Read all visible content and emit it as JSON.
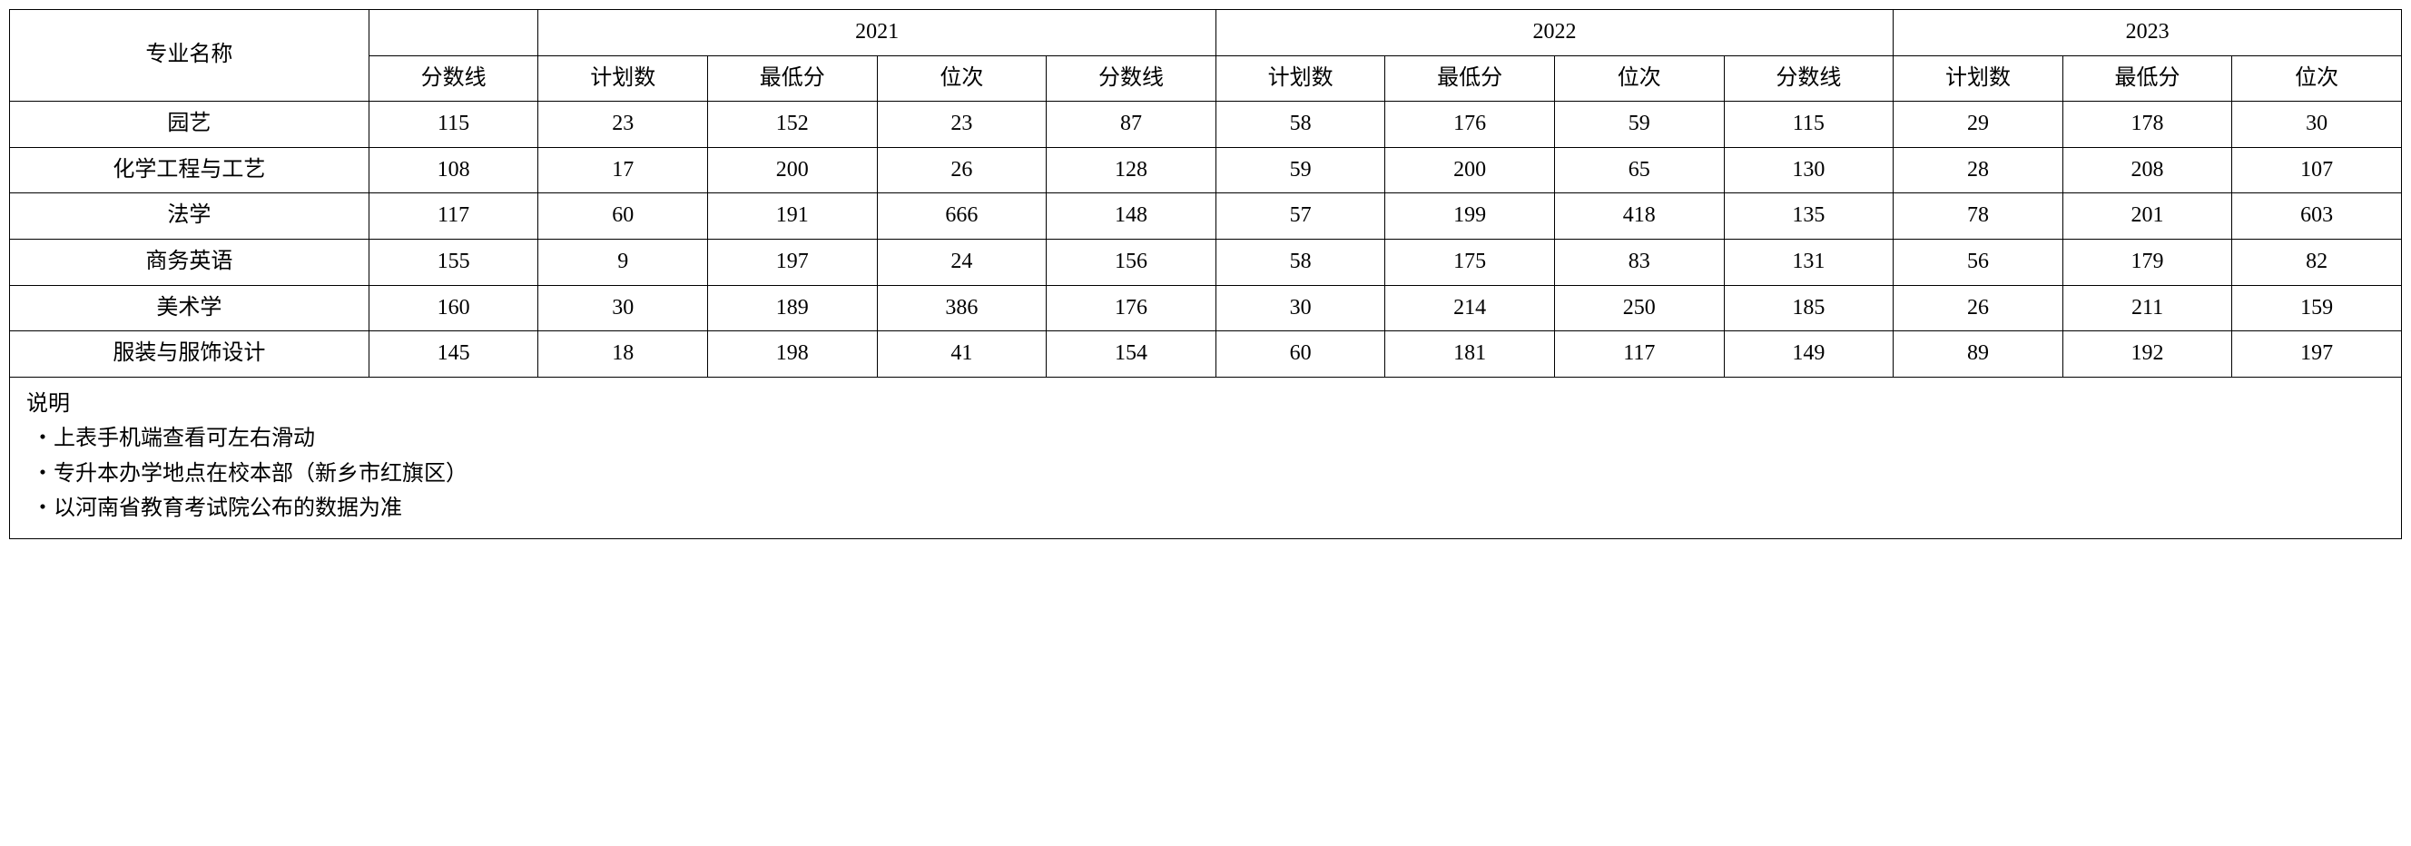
{
  "header": {
    "major_label": "专业名称",
    "years": [
      "2021",
      "2022",
      "2023"
    ],
    "sub_cols_full": [
      "计划数",
      "最低分",
      "位次",
      "分数线"
    ],
    "sub_cols_last": [
      "计划数",
      "最低分",
      "位次"
    ],
    "cutoff_label": "分数线"
  },
  "rows": [
    {
      "major": "园艺",
      "cutoff0": 115,
      "y2021": [
        23,
        152,
        23,
        87
      ],
      "y2022": [
        58,
        176,
        59,
        115
      ],
      "y2023": [
        29,
        178,
        30
      ]
    },
    {
      "major": "化学工程与工艺",
      "cutoff0": 108,
      "y2021": [
        17,
        200,
        26,
        128
      ],
      "y2022": [
        59,
        200,
        65,
        130
      ],
      "y2023": [
        28,
        208,
        107
      ]
    },
    {
      "major": "法学",
      "cutoff0": 117,
      "y2021": [
        60,
        191,
        666,
        148
      ],
      "y2022": [
        57,
        199,
        418,
        135
      ],
      "y2023": [
        78,
        201,
        603
      ]
    },
    {
      "major": "商务英语",
      "cutoff0": 155,
      "y2021": [
        9,
        197,
        24,
        156
      ],
      "y2022": [
        58,
        175,
        83,
        131
      ],
      "y2023": [
        56,
        179,
        82
      ]
    },
    {
      "major": "美术学",
      "cutoff0": 160,
      "y2021": [
        30,
        189,
        386,
        176
      ],
      "y2022": [
        30,
        214,
        250,
        185
      ],
      "y2023": [
        26,
        211,
        159
      ]
    },
    {
      "major": "服装与服饰设计",
      "cutoff0": 145,
      "y2021": [
        18,
        198,
        41,
        154
      ],
      "y2022": [
        60,
        181,
        117,
        149
      ],
      "y2023": [
        89,
        192,
        197
      ]
    }
  ],
  "notes": {
    "title": "说明",
    "bullet": "・",
    "lines": [
      "上表手机端查看可左右滑动",
      "专升本办学地点在校本部（新乡市红旗区）",
      "以河南省教育考试院公布的数据为准"
    ]
  },
  "style": {
    "border_color": "#000000",
    "background_color": "#ffffff",
    "font_family": "SimSun",
    "font_size_pt": 18
  }
}
